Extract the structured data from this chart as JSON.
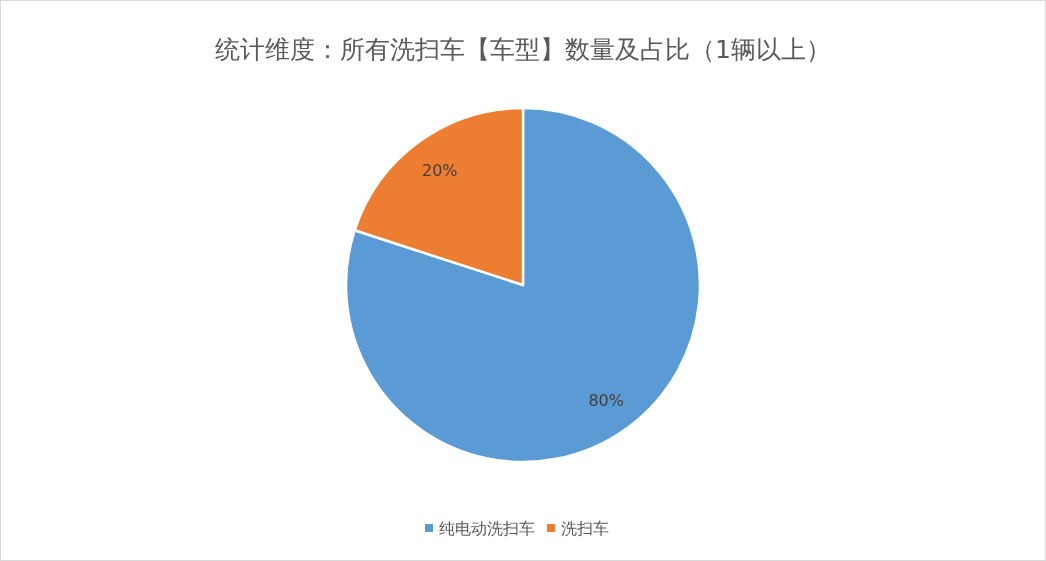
{
  "chart_data": {
    "type": "pie",
    "title": "统计维度：所有洗扫车【车型】数量及占比（1辆以上）",
    "categories": [
      "纯电动洗扫车",
      "洗扫车"
    ],
    "values": [
      80,
      20
    ],
    "colors": [
      "#5b9bd5",
      "#ed7d31"
    ],
    "value_labels": [
      "80%",
      "20%"
    ],
    "legend": "bottom"
  }
}
